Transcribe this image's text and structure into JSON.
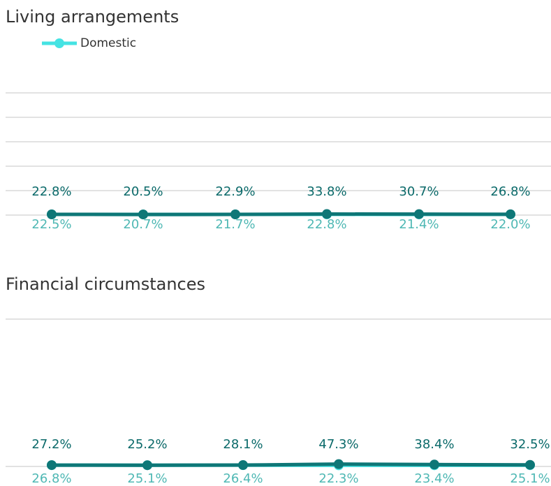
{
  "chart_data": [
    {
      "type": "line",
      "title": "Living arrangements",
      "categories": [
        null,
        null,
        null,
        null,
        null,
        null
      ],
      "series": [
        {
          "name": "Domestic",
          "color": "#45e3e3",
          "label_color": "#4fb8b4",
          "values": [
            22.5,
            20.7,
            21.7,
            22.8,
            21.4,
            22.0
          ],
          "value_labels": [
            "22.5%",
            "20.7%",
            "21.7%",
            "22.8%",
            "21.4%",
            "22.0%"
          ]
        },
        {
          "color": "#0e7777",
          "label_color": "#0b6a6a",
          "values": [
            22.8,
            20.5,
            22.9,
            33.8,
            30.7,
            26.8
          ],
          "value_labels": [
            "22.8%",
            "20.5%",
            "22.9%",
            "33.8%",
            "30.7%",
            "26.8%"
          ]
        }
      ],
      "ylim": [
        0,
        4000
      ],
      "yticks": [
        0,
        800,
        1600,
        2400,
        3200,
        4000
      ],
      "grid": true,
      "legend": "top-left"
    },
    {
      "type": "line",
      "title": "Financial circumstances",
      "categories": [
        null,
        null,
        null,
        null,
        null,
        null
      ],
      "series": [
        {
          "name": "Domestic",
          "color": "#45e3e3",
          "label_color": "#4fb8b4",
          "values": [
            26.8,
            25.1,
            26.4,
            22.3,
            23.4,
            25.1
          ],
          "value_labels": [
            "26.8%",
            "25.1%",
            "26.4%",
            "22.3%",
            "23.4%",
            "25.1%"
          ]
        },
        {
          "color": "#0e7777",
          "label_color": "#0b6a6a",
          "values": [
            27.2,
            25.2,
            28.1,
            47.3,
            38.4,
            32.5
          ],
          "value_labels": [
            "27.2%",
            "25.2%",
            "28.1%",
            "47.3%",
            "38.4%",
            "32.5%"
          ]
        }
      ],
      "ylim": [
        0,
        3000
      ],
      "yticks": [
        0,
        3000
      ],
      "grid": true
    }
  ]
}
